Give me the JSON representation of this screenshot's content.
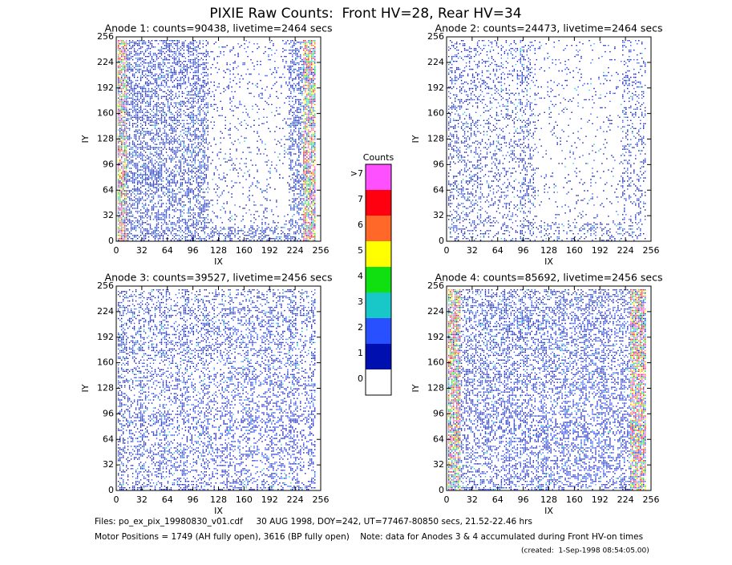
{
  "chart_data": {
    "type": "heatmap",
    "title": "PIXIE Raw Counts:  Front HV=28, Rear HV=34",
    "panels": [
      {
        "title": "Anode 1: counts=90438, livetime=2464 secs",
        "xlabel": "IX",
        "ylabel": "IY",
        "xlim": [
          0,
          256
        ],
        "ylim": [
          0,
          256
        ],
        "xticks": [
          0,
          32,
          64,
          96,
          128,
          160,
          192,
          224,
          256
        ],
        "yticks": [
          0,
          32,
          64,
          96,
          128,
          160,
          192,
          224,
          256
        ]
      },
      {
        "title": "Anode 2: counts=24473, livetime=2464 secs",
        "xlabel": "IX",
        "ylabel": "IY",
        "xlim": [
          0,
          256
        ],
        "ylim": [
          0,
          256
        ],
        "xticks": [
          0,
          32,
          64,
          96,
          128,
          160,
          192,
          224,
          256
        ],
        "yticks": [
          0,
          32,
          64,
          96,
          128,
          160,
          192,
          224,
          256
        ]
      },
      {
        "title": "Anode 3: counts=39527, livetime=2456 secs",
        "xlabel": "IX",
        "ylabel": "IY",
        "xlim": [
          0,
          256
        ],
        "ylim": [
          0,
          256
        ],
        "xticks": [
          0,
          32,
          64,
          96,
          128,
          160,
          192,
          224,
          256
        ],
        "yticks": [
          0,
          32,
          64,
          96,
          128,
          160,
          192,
          224,
          256
        ]
      },
      {
        "title": "Anode 4: counts=85692, livetime=2456 secs",
        "xlabel": "IX",
        "ylabel": "IY",
        "xlim": [
          0,
          256
        ],
        "ylim": [
          0,
          256
        ],
        "xticks": [
          0,
          32,
          64,
          96,
          128,
          160,
          192,
          224,
          256
        ],
        "yticks": [
          0,
          32,
          64,
          96,
          128,
          160,
          192,
          224,
          256
        ]
      }
    ],
    "colorbar": {
      "title": "Counts",
      "levels": [
        {
          "label": "0",
          "color": "#ffffff"
        },
        {
          "label": "1",
          "color": "#0010b0"
        },
        {
          "label": "2",
          "color": "#2850ff"
        },
        {
          "label": "3",
          "color": "#18c8c8"
        },
        {
          "label": "4",
          "color": "#10e010"
        },
        {
          "label": "5",
          "color": "#ffff00"
        },
        {
          "label": "6",
          "color": "#ff6828"
        },
        {
          "label": "7",
          "color": "#ff0010"
        },
        {
          "label": ">7",
          "color": "#ff50ff"
        }
      ]
    },
    "footer": [
      "Files: po_ex_pix_19980830_v01.cdf     30 AUG 1998, DOY=242, UT=77467-80850 secs, 21.52-22.46 hrs",
      "Motor Positions = 1749 (AH fully open), 3616 (BP fully open)    Note: data for Anodes 3 & 4 accumulated during Front HV-on times",
      "(created:  1-Sep-1998 08:54:05.00)"
    ]
  }
}
